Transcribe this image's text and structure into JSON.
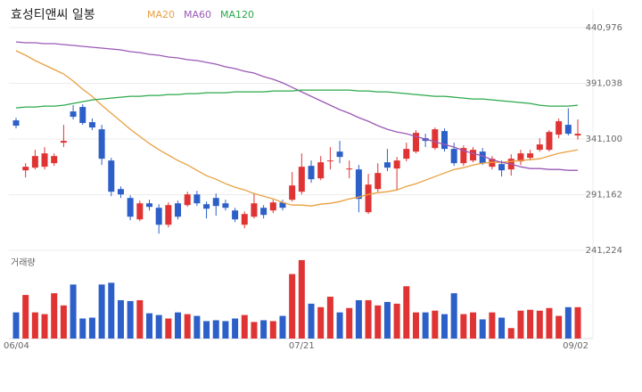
{
  "chart_data": {
    "type": "candlestick",
    "title": "효성티앤씨 일봉",
    "categories": [
      "06/04",
      null,
      null,
      null,
      null,
      null,
      null,
      null,
      null,
      null,
      null,
      null,
      null,
      null,
      null,
      null,
      null,
      null,
      null,
      null,
      null,
      null,
      null,
      null,
      null,
      null,
      null,
      null,
      null,
      null,
      "07/21",
      null,
      null,
      null,
      null,
      null,
      null,
      null,
      null,
      null,
      null,
      null,
      null,
      null,
      null,
      null,
      null,
      null,
      null,
      null,
      null,
      null,
      null,
      null,
      null,
      null,
      null,
      null,
      null,
      "09/02"
    ],
    "open": [
      357800,
      313000,
      315400,
      316200,
      319400,
      337800,
      365800,
      369800,
      356200,
      349800,
      321800,
      296200,
      288200,
      269000,
      283400,
      279400,
      264200,
      283400,
      281800,
      291400,
      282600,
      288200,
      283400,
      277000,
      264200,
      271400,
      279400,
      277000,
      284200,
      286600,
      293800,
      317000,
      305800,
      321000,
      329800,
      313800,
      313800,
      275400,
      296200,
      320200,
      314600,
      323400,
      329800,
      341800,
      333000,
      348200,
      332200,
      319400,
      321800,
      329800,
      316200,
      318600,
      313800,
      321000,
      324200,
      331400,
      331400,
      345000,
      353800,
      344200
    ],
    "high": [
      360200,
      319400,
      331400,
      333800,
      328200,
      353800,
      371400,
      372200,
      359400,
      353800,
      324200,
      298600,
      290600,
      285800,
      286600,
      282600,
      284200,
      285800,
      293800,
      294600,
      285000,
      292200,
      286600,
      279400,
      276200,
      292200,
      281800,
      286600,
      286600,
      311400,
      328200,
      321800,
      325800,
      333800,
      339400,
      321800,
      317800,
      309800,
      319400,
      332200,
      325000,
      337800,
      349000,
      345800,
      351400,
      350600,
      337800,
      335400,
      333800,
      333000,
      325800,
      321800,
      327400,
      331400,
      331400,
      341800,
      349000,
      359400,
      368600,
      358600
    ],
    "low": [
      350600,
      306600,
      313800,
      313800,
      317000,
      333800,
      358600,
      353800,
      349000,
      317800,
      289800,
      288200,
      268200,
      267400,
      277000,
      256200,
      261800,
      269000,
      280200,
      281000,
      269800,
      272200,
      277000,
      266600,
      261000,
      269800,
      269800,
      274600,
      277000,
      285000,
      291400,
      301800,
      304200,
      313800,
      319400,
      305800,
      275400,
      273800,
      293800,
      312200,
      295400,
      321000,
      328200,
      333800,
      331400,
      329800,
      317000,
      317000,
      320200,
      317800,
      313800,
      307400,
      308200,
      317800,
      321800,
      329800,
      329800,
      341800,
      344200,
      340600
    ],
    "close": [
      353000,
      316200,
      325800,
      328200,
      325800,
      339400,
      361000,
      355400,
      351400,
      323400,
      293800,
      291400,
      271400,
      283400,
      280200,
      264200,
      281800,
      271400,
      291400,
      283400,
      278600,
      281000,
      279400,
      269000,
      273800,
      283400,
      273000,
      284200,
      279400,
      299400,
      316200,
      305000,
      320200,
      321800,
      325000,
      314600,
      287400,
      300200,
      310600,
      315400,
      321800,
      332200,
      346600,
      339400,
      349800,
      332200,
      319400,
      333000,
      331400,
      319400,
      323400,
      313000,
      323400,
      328200,
      328200,
      336200,
      347400,
      357000,
      345800,
      345800
    ],
    "rise_color": "#e03333",
    "fall_color": "#2d5fc8",
    "series": [
      {
        "name": "MA20",
        "color": "#e8a040",
        "values": [
          420200,
          416200,
          411400,
          407400,
          403400,
          399400,
          393000,
          385800,
          379400,
          371400,
          364200,
          357000,
          349800,
          343400,
          337000,
          331400,
          326600,
          321800,
          317800,
          313000,
          308200,
          305000,
          301000,
          297800,
          295400,
          292200,
          289800,
          287400,
          284200,
          281800,
          281800,
          281000,
          282600,
          283400,
          285000,
          287400,
          289000,
          291400,
          293000,
          293800,
          295400,
          298600,
          301000,
          304200,
          307400,
          310600,
          313800,
          315400,
          317800,
          319400,
          320200,
          320200,
          321000,
          321800,
          322600,
          323400,
          325800,
          328200,
          329800,
          331400
        ]
      },
      {
        "name": "MA60",
        "color": "#9b59b6",
        "values": [
          428200,
          427400,
          427400,
          426600,
          426600,
          425800,
          425000,
          424200,
          423400,
          422600,
          421800,
          421000,
          419400,
          418600,
          417000,
          416200,
          414600,
          413800,
          412200,
          411400,
          409800,
          408200,
          405800,
          404200,
          401800,
          400200,
          397000,
          394600,
          391400,
          387400,
          383400,
          379400,
          375400,
          371400,
          367400,
          364200,
          360200,
          357000,
          353000,
          349800,
          347400,
          345800,
          343400,
          341000,
          338600,
          336200,
          333800,
          330600,
          328200,
          325800,
          322600,
          320200,
          318600,
          316200,
          314600,
          314600,
          313800,
          313800,
          313000,
          313000
        ]
      },
      {
        "name": "MA120",
        "color": "#2aa84a",
        "values": [
          369000,
          369800,
          369800,
          370600,
          370600,
          371400,
          373000,
          374600,
          376200,
          377000,
          377800,
          378600,
          379400,
          379400,
          380200,
          380200,
          381000,
          381000,
          381800,
          381800,
          382600,
          382600,
          382600,
          383400,
          383400,
          383400,
          383400,
          384200,
          384200,
          384200,
          385000,
          385000,
          385000,
          385000,
          385000,
          385000,
          384200,
          384200,
          383400,
          383400,
          382600,
          381800,
          381000,
          380200,
          379400,
          379400,
          378600,
          377800,
          377000,
          377000,
          376200,
          375400,
          374600,
          373800,
          373000,
          371400,
          370600,
          370600,
          370600,
          371400
        ]
      }
    ],
    "volume": {
      "label": "거래량",
      "ylim": [
        0,
        92
      ],
      "values": [
        30,
        50,
        30,
        28,
        52,
        38,
        62,
        23,
        24,
        62,
        64,
        44,
        43,
        44,
        29,
        27,
        23,
        30,
        28,
        26,
        20,
        21,
        20,
        23,
        27,
        19,
        21,
        20,
        26,
        74,
        90,
        40,
        36,
        48,
        30,
        35,
        44,
        44,
        38,
        42,
        40,
        60,
        30,
        30,
        32,
        28,
        52,
        28,
        30,
        22,
        30,
        24,
        12,
        32,
        33,
        32,
        35,
        26,
        36,
        36
      ]
    },
    "ylim": [
      241224,
      440976
    ],
    "yticks": [
      {
        "value": 241224,
        "label": "241,224"
      },
      {
        "value": 291162,
        "label": "291,162"
      },
      {
        "value": 341100,
        "label": "341,100"
      },
      {
        "value": 391038,
        "label": "391,038"
      },
      {
        "value": 440976,
        "label": "440,976"
      }
    ],
    "grid": true
  }
}
